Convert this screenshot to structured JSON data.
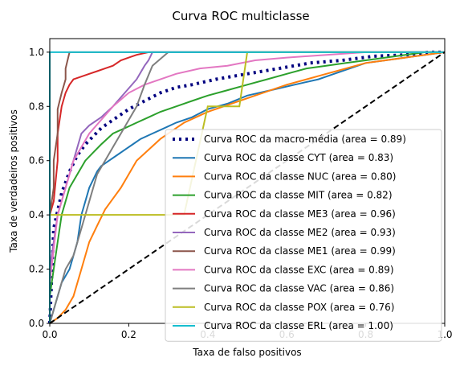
{
  "chart_data": {
    "type": "line",
    "title": "Curva ROC multiclasse",
    "xlabel": "Taxa de falso positivos",
    "ylabel": "Taxa de verdadeiros positivos",
    "xlim": [
      0.0,
      1.0
    ],
    "ylim": [
      0.0,
      1.05
    ],
    "xticks": [
      "0.0",
      "0.2",
      "0.4",
      "0.6",
      "0.8",
      "1.0"
    ],
    "yticks": [
      "0.0",
      "0.2",
      "0.4",
      "0.6",
      "0.8",
      "1.0"
    ],
    "grid": false,
    "legend_position": "lower-right",
    "diagonal": {
      "x": [
        0,
        1
      ],
      "y": [
        0,
        1
      ],
      "color": "#000000",
      "style": "dashed"
    },
    "series": [
      {
        "name": "Curva ROC da macro-média (area = 0.89)",
        "color": "#000080",
        "style": "dotted",
        "x": [
          0.0,
          0.01,
          0.03,
          0.05,
          0.07,
          0.09,
          0.11,
          0.13,
          0.16,
          0.2,
          0.24,
          0.28,
          0.32,
          0.36,
          0.42,
          0.5,
          0.58,
          0.66,
          0.74,
          0.82,
          0.9,
          0.96,
          1.0
        ],
        "y": [
          0.0,
          0.35,
          0.48,
          0.56,
          0.62,
          0.66,
          0.69,
          0.72,
          0.75,
          0.79,
          0.82,
          0.85,
          0.87,
          0.88,
          0.9,
          0.92,
          0.94,
          0.96,
          0.97,
          0.985,
          0.99,
          1.0,
          1.0
        ]
      },
      {
        "name": "Curva ROC da classe CYT (area = 0.83)",
        "color": "#1f77b4",
        "style": "solid",
        "x": [
          0.0,
          0.01,
          0.02,
          0.03,
          0.05,
          0.07,
          0.08,
          0.09,
          0.1,
          0.11,
          0.12,
          0.13,
          0.15,
          0.17,
          0.19,
          0.21,
          0.23,
          0.26,
          0.29,
          0.32,
          0.36,
          0.4,
          0.45,
          0.5,
          0.56,
          0.62,
          0.68,
          0.72,
          0.76,
          0.8,
          0.85,
          0.9,
          0.95,
          1.0
        ],
        "y": [
          0.0,
          0.05,
          0.1,
          0.15,
          0.2,
          0.3,
          0.4,
          0.45,
          0.5,
          0.53,
          0.56,
          0.58,
          0.6,
          0.62,
          0.64,
          0.66,
          0.68,
          0.7,
          0.72,
          0.74,
          0.76,
          0.79,
          0.81,
          0.84,
          0.86,
          0.88,
          0.9,
          0.92,
          0.94,
          0.96,
          0.97,
          0.98,
          0.99,
          1.0
        ]
      },
      {
        "name": "Curva ROC da classe NUC (area = 0.80)",
        "color": "#ff7f0e",
        "style": "solid",
        "x": [
          0.0,
          0.02,
          0.04,
          0.06,
          0.08,
          0.1,
          0.12,
          0.14,
          0.16,
          0.18,
          0.2,
          0.22,
          0.25,
          0.28,
          0.31,
          0.34,
          0.37,
          0.4,
          0.44,
          0.48,
          0.52,
          0.56,
          0.6,
          0.65,
          0.7,
          0.75,
          0.8,
          0.85,
          0.9,
          0.95,
          1.0
        ],
        "y": [
          0.0,
          0.02,
          0.05,
          0.1,
          0.2,
          0.3,
          0.36,
          0.42,
          0.46,
          0.5,
          0.55,
          0.6,
          0.64,
          0.68,
          0.71,
          0.74,
          0.76,
          0.78,
          0.8,
          0.82,
          0.84,
          0.86,
          0.88,
          0.9,
          0.92,
          0.94,
          0.96,
          0.97,
          0.98,
          0.99,
          1.0
        ]
      },
      {
        "name": "Curva ROC da classe MIT (area = 0.82)",
        "color": "#2ca02c",
        "style": "solid",
        "x": [
          0.0,
          0.0,
          0.01,
          0.02,
          0.03,
          0.05,
          0.07,
          0.09,
          0.11,
          0.13,
          0.16,
          0.19,
          0.22,
          0.25,
          0.28,
          0.32,
          0.36,
          0.4,
          0.45,
          0.5,
          0.55,
          0.6,
          0.65,
          0.7,
          0.75,
          0.8,
          0.85,
          0.9,
          0.95,
          1.0
        ],
        "y": [
          0.0,
          0.1,
          0.2,
          0.3,
          0.4,
          0.5,
          0.55,
          0.6,
          0.63,
          0.66,
          0.7,
          0.72,
          0.74,
          0.76,
          0.78,
          0.8,
          0.82,
          0.84,
          0.86,
          0.88,
          0.9,
          0.92,
          0.94,
          0.95,
          0.96,
          0.97,
          0.98,
          0.99,
          1.0,
          1.0
        ]
      },
      {
        "name": "Curva ROC da classe ME3 (area = 0.96)",
        "color": "#d62728",
        "style": "solid",
        "x": [
          0.0,
          0.0,
          0.01,
          0.02,
          0.02,
          0.03,
          0.04,
          0.05,
          0.06,
          0.08,
          0.1,
          0.12,
          0.14,
          0.16,
          0.18,
          0.2,
          0.22,
          0.25,
          0.3,
          0.4,
          0.5,
          0.6,
          0.8,
          1.0
        ],
        "y": [
          0.0,
          0.4,
          0.45,
          0.6,
          0.7,
          0.8,
          0.85,
          0.88,
          0.9,
          0.91,
          0.92,
          0.93,
          0.94,
          0.95,
          0.97,
          0.98,
          0.99,
          1.0,
          1.0,
          1.0,
          1.0,
          1.0,
          1.0,
          1.0
        ]
      },
      {
        "name": "Curva ROC da classe ME2 (area = 0.93)",
        "color": "#9467bd",
        "style": "solid",
        "x": [
          0.0,
          0.0,
          0.01,
          0.02,
          0.04,
          0.06,
          0.08,
          0.1,
          0.13,
          0.16,
          0.19,
          0.22,
          0.24,
          0.25,
          0.26,
          0.3,
          0.4,
          0.6,
          0.8,
          1.0
        ],
        "y": [
          0.0,
          0.2,
          0.3,
          0.4,
          0.5,
          0.6,
          0.7,
          0.73,
          0.76,
          0.8,
          0.85,
          0.9,
          0.95,
          0.97,
          1.0,
          1.0,
          1.0,
          1.0,
          1.0,
          1.0
        ]
      },
      {
        "name": "Curva ROC da classe ME1 (area = 0.99)",
        "color": "#8c564b",
        "style": "solid",
        "x": [
          0.0,
          0.0,
          0.01,
          0.01,
          0.02,
          0.02,
          0.03,
          0.04,
          0.04,
          0.05,
          0.2,
          0.4,
          0.6,
          0.8,
          1.0
        ],
        "y": [
          0.0,
          0.4,
          0.5,
          0.6,
          0.7,
          0.79,
          0.85,
          0.9,
          0.94,
          1.0,
          1.0,
          1.0,
          1.0,
          1.0,
          1.0
        ]
      },
      {
        "name": "Curva ROC da classe EXC (area = 0.89)",
        "color": "#e377c2",
        "style": "solid",
        "x": [
          0.0,
          0.0,
          0.02,
          0.04,
          0.06,
          0.08,
          0.1,
          0.13,
          0.16,
          0.2,
          0.24,
          0.28,
          0.32,
          0.38,
          0.45,
          0.52,
          0.6,
          0.7,
          0.8,
          0.9,
          1.0
        ],
        "y": [
          0.0,
          0.15,
          0.4,
          0.5,
          0.6,
          0.65,
          0.7,
          0.75,
          0.8,
          0.85,
          0.88,
          0.9,
          0.92,
          0.94,
          0.95,
          0.97,
          0.98,
          0.99,
          1.0,
          1.0,
          1.0
        ]
      },
      {
        "name": "Curva ROC da classe VAC (area = 0.86)",
        "color": "#7f7f7f",
        "style": "solid",
        "x": [
          0.0,
          0.02,
          0.04,
          0.06,
          0.08,
          0.1,
          0.12,
          0.14,
          0.16,
          0.18,
          0.2,
          0.22,
          0.24,
          0.26,
          0.3,
          0.35,
          0.4,
          0.5,
          0.6,
          0.8,
          1.0
        ],
        "y": [
          0.0,
          0.1,
          0.2,
          0.25,
          0.35,
          0.45,
          0.55,
          0.6,
          0.65,
          0.7,
          0.75,
          0.8,
          0.88,
          0.95,
          1.0,
          1.0,
          1.0,
          1.0,
          1.0,
          1.0,
          1.0
        ]
      },
      {
        "name": "Curva ROC da classe POX (area = 0.76)",
        "color": "#bcbd22",
        "style": "solid",
        "x": [
          0.0,
          0.0,
          0.2,
          0.34,
          0.4,
          0.48,
          0.5,
          0.6,
          0.7,
          0.8,
          0.9,
          1.0
        ],
        "y": [
          0.0,
          0.4,
          0.4,
          0.4,
          0.8,
          0.8,
          1.0,
          1.0,
          1.0,
          1.0,
          1.0,
          1.0
        ]
      },
      {
        "name": "Curva ROC da classe ERL (area = 1.00)",
        "color": "#17becf",
        "style": "solid",
        "x": [
          0.0,
          0.0,
          0.2,
          0.4,
          0.6,
          0.8,
          1.0
        ],
        "y": [
          0.0,
          1.0,
          1.0,
          1.0,
          1.0,
          1.0,
          1.0
        ]
      }
    ]
  }
}
